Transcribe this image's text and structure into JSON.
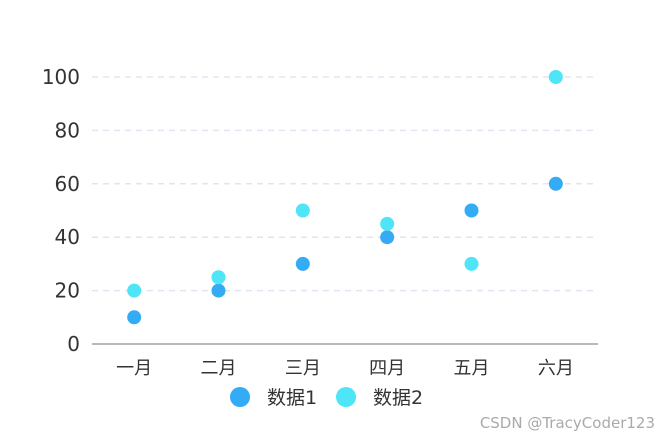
{
  "chart_data": {
    "type": "scatter",
    "categories": [
      "一月",
      "二月",
      "三月",
      "四月",
      "五月",
      "六月"
    ],
    "series": [
      {
        "name": "数据1",
        "color": "#33acf5",
        "values": [
          10,
          20,
          30,
          40,
          50,
          60
        ]
      },
      {
        "name": "数据2",
        "color": "#4ee5f7",
        "values": [
          20,
          25,
          50,
          45,
          30,
          100
        ]
      }
    ],
    "y_ticks": [
      0,
      20,
      40,
      60,
      80,
      100
    ],
    "ylim": [
      0,
      100
    ],
    "grid": true,
    "legend_placement": "bottom-center",
    "title": "",
    "xlabel": "",
    "ylabel": ""
  },
  "watermark": "CSDN @TracyCoder123"
}
